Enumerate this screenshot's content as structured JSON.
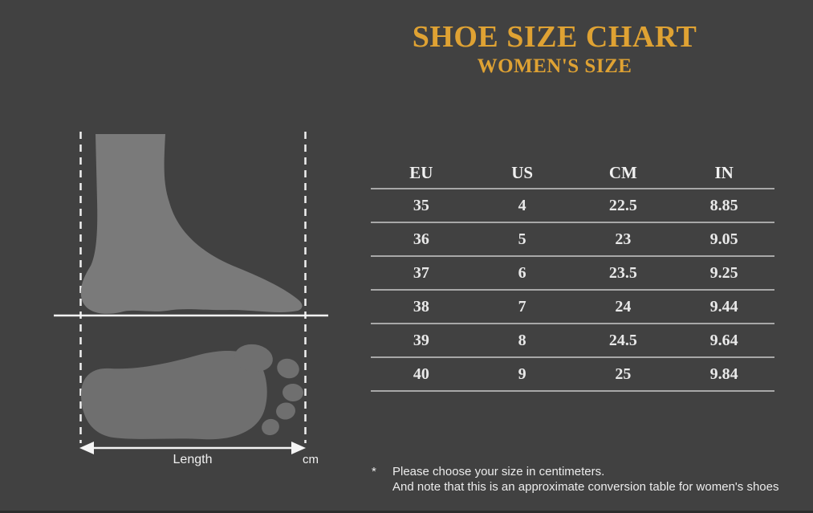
{
  "page": {
    "background_color": "#414141",
    "accent_color": "#dfa233",
    "text_color": "#e9e9e9",
    "silhouette_color_side": "#7a7a7a",
    "silhouette_color_print": "#6f6f6f"
  },
  "header": {
    "title": "SHOE SIZE CHART",
    "subtitle": "WOMEN'S SIZE"
  },
  "illustration": {
    "foot_side_icon": "foot-side-silhouette",
    "footprint_icon": "footprint-silhouette",
    "measure_arrow_icon": "double-headed-arrow",
    "length_label": "Length",
    "unit_label": "cm"
  },
  "table": {
    "columns": [
      "EU",
      "US",
      "CM",
      "IN"
    ],
    "rows": [
      [
        "35",
        "4",
        "22.5",
        "8.85"
      ],
      [
        "36",
        "5",
        "23",
        "9.05"
      ],
      [
        "37",
        "6",
        "23.5",
        "9.25"
      ],
      [
        "38",
        "7",
        "24",
        "9.44"
      ],
      [
        "39",
        "8",
        "24.5",
        "9.64"
      ],
      [
        "40",
        "9",
        "25",
        "9.84"
      ]
    ]
  },
  "footnote": {
    "marker": "*",
    "line1": "Please choose your size in centimeters.",
    "line2": "And note that this is an approximate conversion table for women's shoes"
  }
}
